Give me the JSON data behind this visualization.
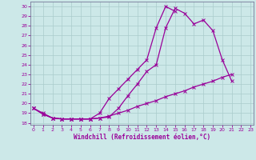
{
  "xlabel": "Windchill (Refroidissement éolien,°C)",
  "bg_color": "#cce8e8",
  "line_color": "#990099",
  "grid_color": "#aacccc",
  "ylim": [
    17.8,
    30.5
  ],
  "xlim": [
    -0.3,
    23.3
  ],
  "yticks": [
    18,
    19,
    20,
    21,
    22,
    23,
    24,
    25,
    26,
    27,
    28,
    29,
    30
  ],
  "xticks": [
    0,
    1,
    2,
    3,
    4,
    5,
    6,
    7,
    8,
    9,
    10,
    11,
    12,
    13,
    14,
    15,
    16,
    17,
    18,
    19,
    20,
    21,
    22,
    23
  ],
  "x_all": [
    0,
    1,
    2,
    3,
    4,
    5,
    6,
    7,
    8,
    9,
    10,
    11,
    12,
    13,
    14,
    15,
    16,
    17,
    18,
    19,
    20,
    21,
    22,
    23
  ],
  "y1": [
    19.5,
    18.9,
    18.5,
    18.4,
    18.4,
    18.4,
    18.4,
    18.5,
    18.6,
    19.5,
    20.8,
    22.0,
    23.3,
    24.0,
    27.8,
    29.8,
    29.3,
    28.2,
    28.6,
    27.5,
    24.5,
    22.3,
    null,
    null
  ],
  "y2": [
    19.5,
    18.9,
    18.5,
    18.4,
    18.4,
    18.4,
    18.4,
    19.0,
    20.5,
    21.5,
    22.5,
    23.5,
    24.5,
    27.8,
    30.0,
    29.5,
    null,
    null,
    null,
    null,
    null,
    null,
    null,
    null
  ],
  "y3": [
    19.5,
    19.0,
    18.5,
    18.4,
    18.4,
    18.4,
    18.4,
    18.5,
    18.7,
    19.0,
    19.3,
    19.7,
    20.0,
    20.3,
    20.7,
    21.0,
    21.3,
    21.7,
    22.0,
    22.3,
    22.7,
    23.0,
    null,
    null
  ]
}
